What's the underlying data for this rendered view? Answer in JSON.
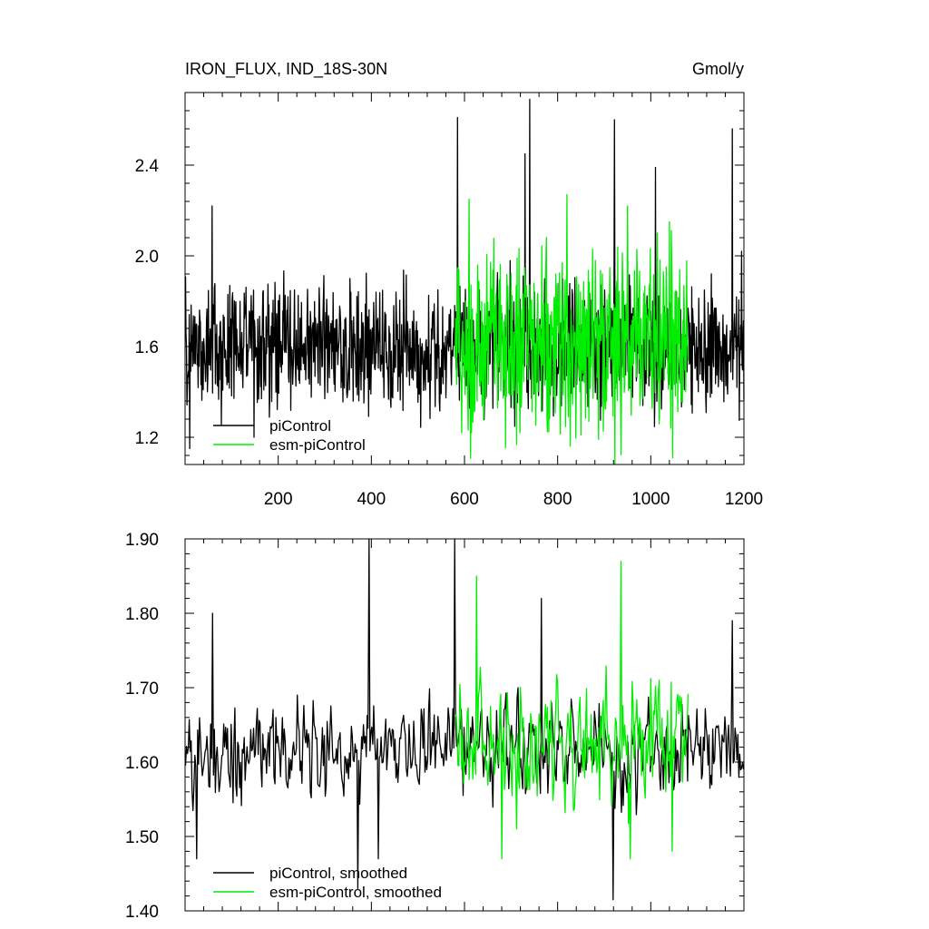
{
  "chart_data": [
    {
      "type": "line",
      "title": "IRON_FLUX, IND_18S-30N",
      "units": "Gmol/y",
      "xlim": [
        0,
        1200
      ],
      "ylim": [
        1.08,
        2.72
      ],
      "xticks": [
        200,
        400,
        600,
        800,
        1000,
        1200
      ],
      "xtick_labels": [
        "200",
        "400",
        "600",
        "800",
        "1000",
        "1200"
      ],
      "yticks": [
        1.2,
        1.6,
        2.0,
        2.4
      ],
      "ytick_labels": [
        "1.2",
        "1.6",
        "2.0",
        "2.4"
      ],
      "legend_position": "bottom-left",
      "grid": false,
      "series": [
        {
          "name": "piControl",
          "color": "#000000",
          "x_start": 1,
          "x_end": 1200,
          "mean": 1.6,
          "amplitude": 0.14,
          "peaks": [
            [
              58,
              2.22
            ],
            [
              148,
              1.2
            ],
            [
              10,
              1.15
            ],
            [
              585,
              2.61
            ],
            [
              740,
              2.69
            ],
            [
              730,
              2.45
            ],
            [
              922,
              2.6
            ],
            [
              1010,
              2.39
            ],
            [
              1175,
              2.56
            ],
            [
              1195,
              2.02
            ]
          ]
        },
        {
          "name": "esm-piControl",
          "color": "#00ee00",
          "x_start": 580,
          "x_end": 1080,
          "mean": 1.62,
          "amplitude": 0.2,
          "peaks": [
            [
              610,
              2.25
            ],
            [
              820,
              2.27
            ],
            [
              950,
              2.22
            ],
            [
              1040,
              2.15
            ],
            [
              615,
              1.22
            ],
            [
              1043,
              1.24
            ]
          ]
        }
      ]
    },
    {
      "type": "line",
      "xlim": [
        0,
        1200
      ],
      "ylim": [
        1.4,
        1.9
      ],
      "xticks": [
        200,
        400,
        600,
        800,
        1000,
        1200
      ],
      "yticks": [
        1.4,
        1.5,
        1.6,
        1.7,
        1.8,
        1.9
      ],
      "ytick_labels": [
        "1.40",
        "1.50",
        "1.60",
        "1.70",
        "1.80",
        "1.90"
      ],
      "legend_position": "bottom-left",
      "grid": false,
      "series": [
        {
          "name": "piControl, smoothed",
          "color": "#000000",
          "x_start": 1,
          "x_end": 1200,
          "mean": 1.615,
          "amplitude": 0.045,
          "peaks": [
            [
              60,
              1.8
            ],
            [
              395,
              1.9
            ],
            [
              580,
              1.9
            ],
            [
              372,
              1.43
            ],
            [
              415,
              1.47
            ],
            [
              920,
              1.415
            ],
            [
              765,
              1.82
            ],
            [
              1175,
              1.79
            ],
            [
              25,
              1.47
            ]
          ]
        },
        {
          "name": "esm-piControl, smoothed",
          "color": "#00ee00",
          "x_start": 580,
          "x_end": 1080,
          "mean": 1.63,
          "amplitude": 0.065,
          "peaks": [
            [
              625,
              1.85
            ],
            [
              935,
              1.87
            ],
            [
              955,
              1.47
            ],
            [
              1045,
              1.48
            ],
            [
              680,
              1.47
            ]
          ]
        }
      ]
    }
  ]
}
